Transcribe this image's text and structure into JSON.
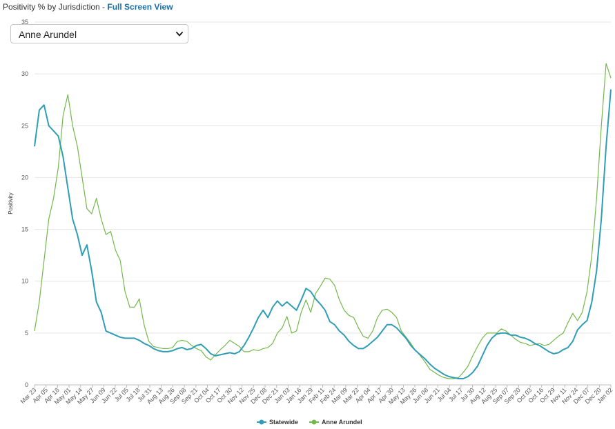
{
  "header": {
    "title": "Positivity % by Jurisdiction - ",
    "link": "Full Screen View"
  },
  "dropdown": {
    "selected": "Anne Arundel"
  },
  "colors": {
    "statewide": "#2f9db5",
    "jurisdiction": "#72b84a",
    "grid": "#e6e6e6"
  },
  "chart_data": {
    "type": "line",
    "title": "",
    "xlabel": "",
    "ylabel": "Positivity",
    "ylim": [
      0,
      35
    ],
    "yticks": [
      0,
      5,
      10,
      15,
      20,
      25,
      30,
      35
    ],
    "x_tick_labels": [
      "Mar 23",
      "Apr 05",
      "Apr 18",
      "May 01",
      "May 14",
      "May 27",
      "Jun 09",
      "Jun 22",
      "Jul 05",
      "Jul 18",
      "Jul 31",
      "Aug 13",
      "Aug 26",
      "Sep 08",
      "Sep 21",
      "Oct 04",
      "Oct 17",
      "Oct 30",
      "Nov 12",
      "Nov 25",
      "Dec 08",
      "Dec 21",
      "Jan 03",
      "Jan 16",
      "Jan 29",
      "Feb 11",
      "Feb 24",
      "Mar 09",
      "Mar 22",
      "Apr 04",
      "Apr 17",
      "Apr 30",
      "May 13",
      "May 26",
      "Jun 08",
      "Jun 21",
      "Jul 04",
      "Jul 17",
      "Jul 30",
      "Aug 12",
      "Aug 25",
      "Sep 07",
      "Sep 20",
      "Oct 03",
      "Oct 16",
      "Oct 29",
      "Nov 11",
      "Nov 24",
      "Dec 07",
      "Dec 20",
      "Jan 02"
    ],
    "legend_position": "bottom-center",
    "grid": true,
    "series": [
      {
        "name": "Statewide",
        "color": "#2f9db5",
        "values": [
          23,
          26.5,
          27,
          25,
          24.5,
          24,
          22,
          19,
          16,
          14.5,
          12.5,
          13.5,
          11,
          8,
          7,
          5.2,
          5,
          4.8,
          4.6,
          4.5,
          4.5,
          4.5,
          4.3,
          4,
          3.8,
          3.5,
          3.3,
          3.2,
          3.2,
          3.3,
          3.5,
          3.6,
          3.4,
          3.5,
          3.8,
          3.9,
          3.5,
          3,
          2.8,
          2.9,
          3,
          3.1,
          3,
          3.2,
          3.8,
          4.6,
          5.5,
          6.5,
          7.2,
          6.5,
          7.5,
          8.1,
          7.6,
          8,
          7.6,
          7.2,
          8.2,
          9.3,
          9,
          8.3,
          7.8,
          7.2,
          6.1,
          5.8,
          5.2,
          4.8,
          4.2,
          3.8,
          3.5,
          3.5,
          3.8,
          4.2,
          4.6,
          5.2,
          5.8,
          5.8,
          5.5,
          5,
          4.5,
          3.8,
          3.3,
          2.9,
          2.5,
          2,
          1.6,
          1.3,
          1,
          0.8,
          0.7,
          0.6,
          0.6,
          0.8,
          1.2,
          1.8,
          2.8,
          3.8,
          4.5,
          4.9,
          5.0,
          5.0,
          4.8,
          4.8,
          4.6,
          4.5,
          4.3,
          4.0,
          3.8,
          3.5,
          3.2,
          3.0,
          3.1,
          3.4,
          3.6,
          4.2,
          5.3,
          5.8,
          6.2,
          8.0,
          11,
          16,
          23,
          28.5
        ]
      },
      {
        "name": "Anne Arundel",
        "color": "#72b84a",
        "values": [
          5.2,
          8,
          12,
          16,
          18,
          21,
          26,
          28,
          25,
          23,
          20,
          17,
          16.5,
          18,
          16,
          14.5,
          14.8,
          13,
          12,
          9,
          7.5,
          7.5,
          8.3,
          5.8,
          4.2,
          3.7,
          3.6,
          3.5,
          3.5,
          3.6,
          4.2,
          4.3,
          4.2,
          3.8,
          3.5,
          3.3,
          2.7,
          2.4,
          2.9,
          3.4,
          3.8,
          4.3,
          4.0,
          3.7,
          3.2,
          3.2,
          3.4,
          3.3,
          3.5,
          3.6,
          4.0,
          5,
          5.5,
          6.6,
          5,
          5.2,
          7,
          8.2,
          7,
          8.8,
          9.5,
          10.3,
          10.2,
          9.6,
          8.2,
          7.2,
          6.7,
          6.5,
          5.5,
          4.7,
          4.5,
          5.2,
          6.5,
          7.2,
          7.3,
          7.0,
          6.5,
          5.2,
          4.6,
          4.0,
          3.3,
          2.8,
          2.2,
          1.5,
          1.2,
          0.9,
          0.7,
          0.6,
          0.6,
          0.7,
          1.2,
          1.8,
          2.8,
          3.7,
          4.5,
          5.0,
          5.0,
          5.0,
          5.4,
          5.2,
          4.8,
          4.4,
          4.1,
          4.0,
          3.8,
          3.9,
          4.0,
          3.8,
          3.9,
          4.3,
          4.7,
          5.0,
          6.0,
          6.9,
          6.2,
          7.0,
          9.0,
          12.5,
          18,
          25,
          31,
          29.6
        ]
      }
    ]
  }
}
